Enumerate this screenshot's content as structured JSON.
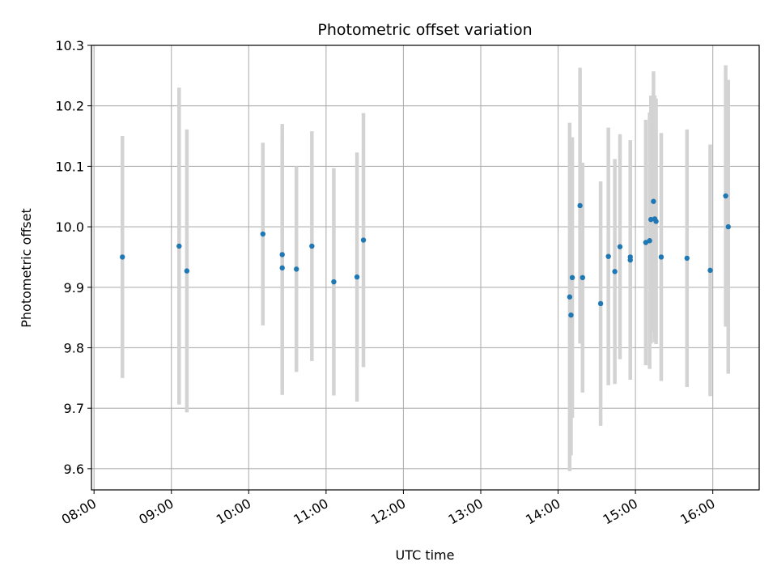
{
  "chart_data": {
    "type": "scatter",
    "title": "Photometric offset variation",
    "xlabel": "UTC time",
    "ylabel": "Photometric offset",
    "xlim": [
      "07:58",
      "16:36"
    ],
    "ylim": [
      9.565,
      10.3
    ],
    "grid": true,
    "x_ticks": [
      "08:00",
      "09:00",
      "10:00",
      "11:00",
      "12:00",
      "13:00",
      "14:00",
      "15:00",
      "16:00"
    ],
    "y_ticks": [
      "9.6",
      "9.7",
      "9.8",
      "9.9",
      "10.0",
      "10.1",
      "10.2",
      "10.3"
    ],
    "error_bar_color": "#d3d3d3",
    "point_color": "#1f77b4",
    "points": [
      {
        "x": "08:22",
        "y": 9.95,
        "err": 0.2
      },
      {
        "x": "09:06",
        "y": 9.968,
        "err": 0.262
      },
      {
        "x": "09:12",
        "y": 9.927,
        "err": 0.234
      },
      {
        "x": "10:11",
        "y": 9.988,
        "err": 0.151
      },
      {
        "x": "10:26",
        "y": 9.954,
        "err": 0.216
      },
      {
        "x": "10:26",
        "y": 9.932,
        "err": 0.21
      },
      {
        "x": "10:37",
        "y": 9.93,
        "err": 0.17
      },
      {
        "x": "10:49",
        "y": 9.968,
        "err": 0.19
      },
      {
        "x": "11:06",
        "y": 9.909,
        "err": 0.188
      },
      {
        "x": "11:24",
        "y": 9.917,
        "err": 0.206
      },
      {
        "x": "11:29",
        "y": 9.978,
        "err": 0.21
      },
      {
        "x": "14:09",
        "y": 9.884,
        "err": 0.288
      },
      {
        "x": "14:10",
        "y": 9.854,
        "err": 0.232
      },
      {
        "x": "14:11",
        "y": 9.916,
        "err": 0.232
      },
      {
        "x": "14:17",
        "y": 10.035,
        "err": 0.228
      },
      {
        "x": "14:19",
        "y": 9.916,
        "err": 0.19
      },
      {
        "x": "14:33",
        "y": 9.873,
        "err": 0.202
      },
      {
        "x": "14:39",
        "y": 9.951,
        "err": 0.213
      },
      {
        "x": "14:44",
        "y": 9.926,
        "err": 0.186
      },
      {
        "x": "14:48",
        "y": 9.967,
        "err": 0.186
      },
      {
        "x": "14:56",
        "y": 9.95,
        "err": 0.193
      },
      {
        "x": "14:56",
        "y": 9.945,
        "err": 0.198
      },
      {
        "x": "15:08",
        "y": 9.974,
        "err": 0.203
      },
      {
        "x": "15:11",
        "y": 9.977,
        "err": 0.212
      },
      {
        "x": "15:12",
        "y": 10.012,
        "err": 0.205
      },
      {
        "x": "15:14",
        "y": 10.042,
        "err": 0.215
      },
      {
        "x": "15:15",
        "y": 10.013,
        "err": 0.204
      },
      {
        "x": "15:16",
        "y": 10.009,
        "err": 0.203
      },
      {
        "x": "15:20",
        "y": 9.95,
        "err": 0.205
      },
      {
        "x": "15:40",
        "y": 9.948,
        "err": 0.213
      },
      {
        "x": "15:58",
        "y": 9.928,
        "err": 0.208
      },
      {
        "x": "16:10",
        "y": 10.051,
        "err": 0.216
      },
      {
        "x": "16:12",
        "y": 10.0,
        "err": 0.243
      }
    ]
  }
}
